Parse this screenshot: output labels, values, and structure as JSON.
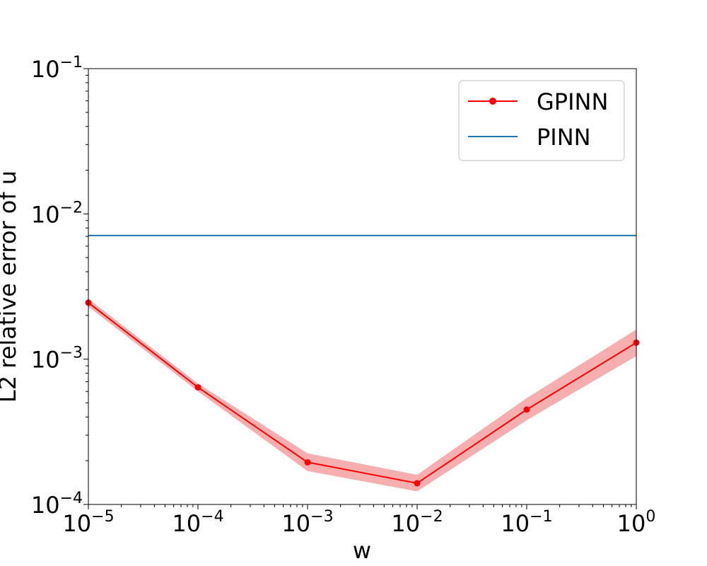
{
  "chart_data": {
    "type": "line",
    "xscale": "log",
    "yscale": "log",
    "xlabel": "w",
    "ylabel": "L2 relative error of u",
    "xlim": [
      1e-05,
      1
    ],
    "ylim": [
      0.0001,
      0.1
    ],
    "x_ticks": [
      {
        "value": 1e-05,
        "base": "10",
        "exp": "−5"
      },
      {
        "value": 0.0001,
        "base": "10",
        "exp": "−4"
      },
      {
        "value": 0.001,
        "base": "10",
        "exp": "−3"
      },
      {
        "value": 0.01,
        "base": "10",
        "exp": "−2"
      },
      {
        "value": 0.1,
        "base": "10",
        "exp": "−1"
      },
      {
        "value": 1,
        "base": "10",
        "exp": "0"
      }
    ],
    "y_ticks": [
      {
        "value": 0.0001,
        "base": "10",
        "exp": "−4"
      },
      {
        "value": 0.001,
        "base": "10",
        "exp": "−3"
      },
      {
        "value": 0.01,
        "base": "10",
        "exp": "−2"
      },
      {
        "value": 0.1,
        "base": "10",
        "exp": "−1"
      }
    ],
    "legend_position": "top-right",
    "series": [
      {
        "name": "GPINN",
        "color": "#ff0000",
        "band_color": "#f4a0a0",
        "marker": "circle",
        "x": [
          1e-05,
          0.0001,
          0.001,
          0.01,
          0.1,
          1
        ],
        "y": [
          0.00245,
          0.00064,
          0.000195,
          0.00014,
          0.00045,
          0.0013
        ],
        "y_lower": [
          0.0023,
          0.0006,
          0.00017,
          0.000123,
          0.00038,
          0.00105
        ],
        "y_upper": [
          0.0026,
          0.00068,
          0.000225,
          0.00016,
          0.00054,
          0.0016
        ]
      },
      {
        "name": "PINN",
        "color": "#1f77b4",
        "marker": "none",
        "x": [
          1e-05,
          1
        ],
        "y": [
          0.0071,
          0.0071
        ]
      }
    ]
  }
}
